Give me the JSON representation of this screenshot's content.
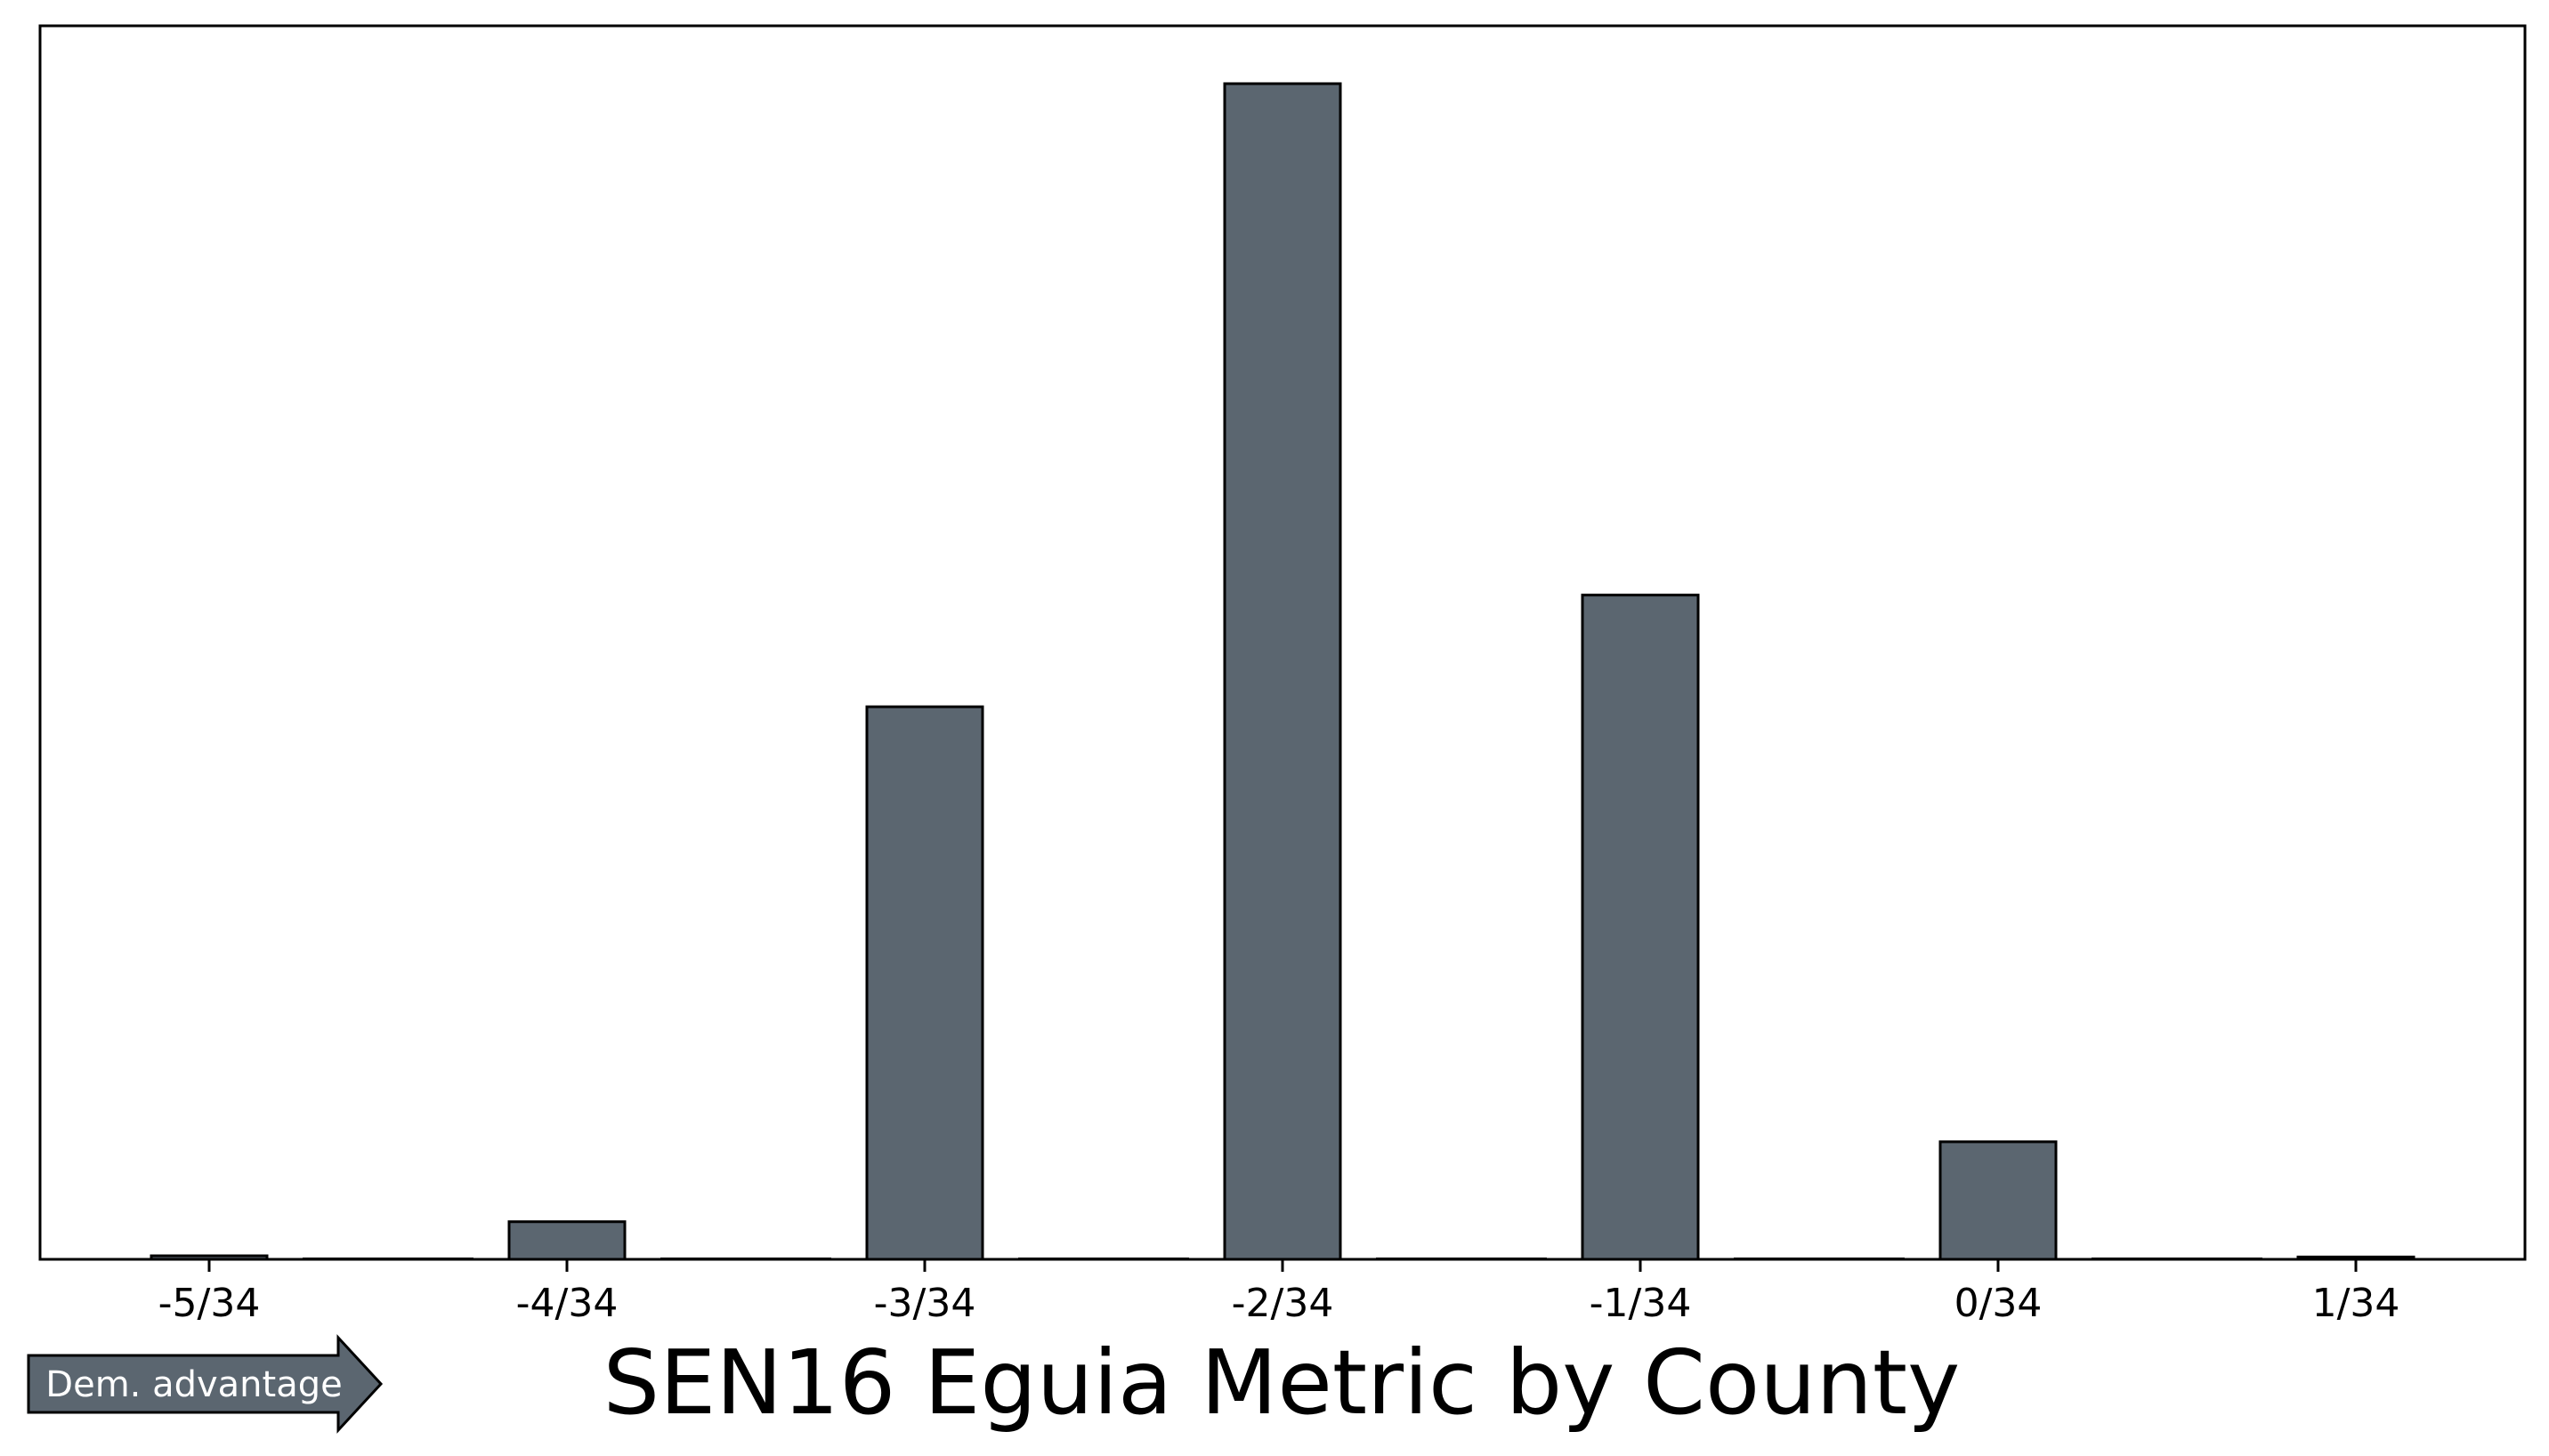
{
  "chart_data": {
    "type": "bar",
    "title": "SEN16 Eguia Metric by County",
    "xlabel": "",
    "ylabel": "",
    "categories": [
      "-5/34",
      "-4/34",
      "-3/34",
      "-2/34",
      "-1/34",
      "0/34",
      "1/34"
    ],
    "values": [
      0.3,
      3.2,
      47.0,
      100.0,
      56.5,
      10.0,
      0.2
    ],
    "ylim": [
      0,
      100
    ],
    "grid": false,
    "y_ticks_visible": false,
    "bar_color": "#5b6670",
    "edge_color": "#000000"
  },
  "annotation": {
    "arrow_label": "Dem. advantage",
    "arrow_color": "#5b6670"
  }
}
